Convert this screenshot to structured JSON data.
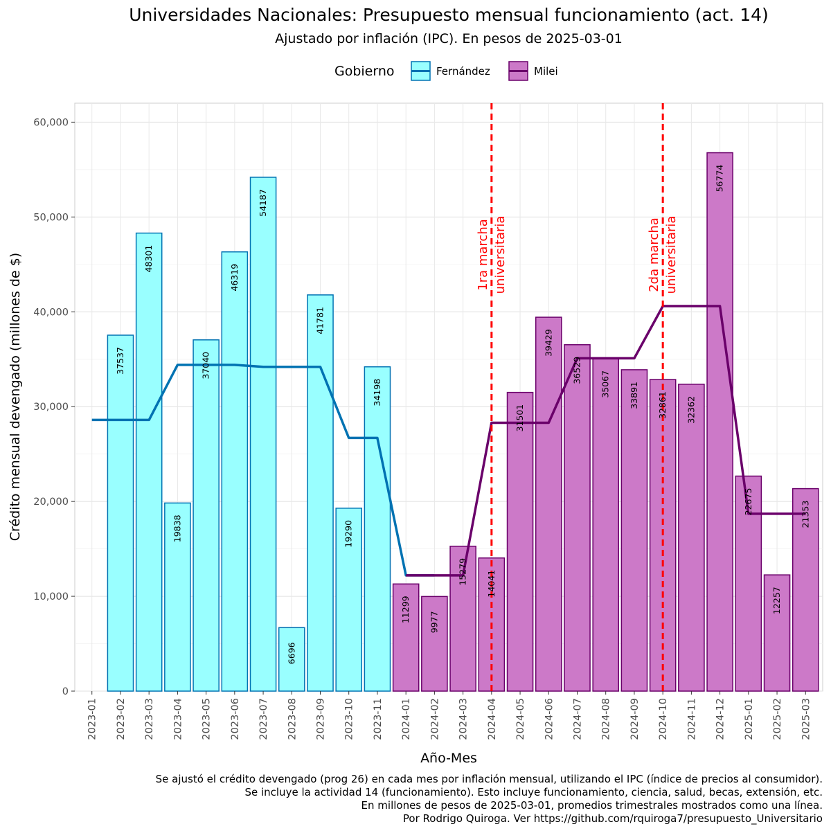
{
  "chart_data": {
    "type": "bar",
    "title": "Universidades Nacionales: Presupuesto mensual funcionamiento (act. 14)",
    "subtitle": "Ajustado por inflación (IPC). En pesos de 2025-03-01",
    "xlabel": "Año-Mes",
    "ylabel": "Crédito mensual devengado (millones de $)",
    "ylim": [
      0,
      62000
    ],
    "yticks": [
      0,
      10000,
      20000,
      30000,
      40000,
      50000,
      60000
    ],
    "ytick_labels": [
      "0",
      "10,000",
      "20,000",
      "30,000",
      "40,000",
      "50,000",
      "60,000"
    ],
    "grid": true,
    "legend": {
      "title": "Gobierno",
      "placement": "top",
      "entries": [
        {
          "name": "Fernández",
          "fill": "#99ffff",
          "stroke": "#0072b2"
        },
        {
          "name": "Milei",
          "fill": "#cc79c8",
          "stroke": "#6a006a"
        }
      ]
    },
    "categories": [
      "2023-01",
      "2023-02",
      "2023-03",
      "2023-04",
      "2023-05",
      "2023-06",
      "2023-07",
      "2023-08",
      "2023-09",
      "2023-10",
      "2023-11",
      "2024-01",
      "2024-02",
      "2024-03",
      "2024-04",
      "2024-05",
      "2024-06",
      "2024-07",
      "2024-08",
      "2024-09",
      "2024-10",
      "2024-11",
      "2024-12",
      "2025-01",
      "2025-02",
      "2025-03"
    ],
    "bars": [
      {
        "x": "2023-01",
        "value": 0,
        "label": "",
        "gov": "Fernández"
      },
      {
        "x": "2023-02",
        "value": 37537,
        "label": "37537",
        "gov": "Fernández"
      },
      {
        "x": "2023-03",
        "value": 48301,
        "label": "48301",
        "gov": "Fernández"
      },
      {
        "x": "2023-04",
        "value": 19838,
        "label": "19838",
        "gov": "Fernández"
      },
      {
        "x": "2023-05",
        "value": 37040,
        "label": "37040",
        "gov": "Fernández"
      },
      {
        "x": "2023-06",
        "value": 46319,
        "label": "46319",
        "gov": "Fernández"
      },
      {
        "x": "2023-07",
        "value": 54187,
        "label": "54187",
        "gov": "Fernández"
      },
      {
        "x": "2023-08",
        "value": 6696,
        "label": "6696",
        "gov": "Fernández"
      },
      {
        "x": "2023-09",
        "value": 41781,
        "label": "41781",
        "gov": "Fernández"
      },
      {
        "x": "2023-10",
        "value": 19290,
        "label": "19290",
        "gov": "Fernández"
      },
      {
        "x": "2023-11",
        "value": 34198,
        "label": "34198",
        "gov": "Fernández"
      },
      {
        "x": "2024-01",
        "value": 11299,
        "label": "11299",
        "gov": "Milei"
      },
      {
        "x": "2024-02",
        "value": 9977,
        "label": "9977",
        "gov": "Milei"
      },
      {
        "x": "2024-03",
        "value": 15279,
        "label": "15279",
        "gov": "Milei"
      },
      {
        "x": "2024-04",
        "value": 14041,
        "label": "14041",
        "gov": "Milei"
      },
      {
        "x": "2024-05",
        "value": 31501,
        "label": "31501",
        "gov": "Milei"
      },
      {
        "x": "2024-06",
        "value": 39429,
        "label": "39429",
        "gov": "Milei"
      },
      {
        "x": "2024-07",
        "value": 36529,
        "label": "36529",
        "gov": "Milei"
      },
      {
        "x": "2024-08",
        "value": 35067,
        "label": "35067",
        "gov": "Milei"
      },
      {
        "x": "2024-09",
        "value": 33891,
        "label": "33891",
        "gov": "Milei"
      },
      {
        "x": "2024-10",
        "value": 32861,
        "label": "32861",
        "gov": "Milei"
      },
      {
        "x": "2024-11",
        "value": 32362,
        "label": "32362",
        "gov": "Milei"
      },
      {
        "x": "2024-12",
        "value": 56774,
        "label": "56774",
        "gov": "Milei"
      },
      {
        "x": "2025-01",
        "value": 22675,
        "label": "22675",
        "gov": "Milei"
      },
      {
        "x": "2025-02",
        "value": 12257,
        "label": "12257",
        "gov": "Milei"
      },
      {
        "x": "2025-03",
        "value": 21353,
        "label": "21353",
        "gov": "Milei"
      }
    ],
    "quarterly_lines": [
      {
        "name": "Fernández",
        "color": "#0072b2",
        "points": [
          [
            "2023-01",
            28600
          ],
          [
            "2023-03",
            28600
          ],
          [
            "2023-04",
            34400
          ],
          [
            "2023-06",
            34400
          ],
          [
            "2023-07",
            34200
          ],
          [
            "2023-09",
            34200
          ],
          [
            "2023-10",
            26700
          ],
          [
            "2023-11",
            26700
          ],
          [
            "2024-01",
            12200
          ],
          [
            "2024-02",
            12200
          ]
        ]
      },
      {
        "name": "Milei",
        "color": "#6a006a",
        "points": [
          [
            "2024-01",
            12200
          ],
          [
            "2024-03",
            12200
          ],
          [
            "2024-04",
            28300
          ],
          [
            "2024-06",
            28300
          ],
          [
            "2024-07",
            35100
          ],
          [
            "2024-09",
            35100
          ],
          [
            "2024-10",
            40600
          ],
          [
            "2024-12",
            40600
          ],
          [
            "2025-01",
            18700
          ],
          [
            "2025-03",
            18700
          ]
        ]
      }
    ],
    "annotations": [
      {
        "x": "2024-04",
        "lines": [
          "1ra marcha",
          "universitaria"
        ],
        "color": "#ff0000"
      },
      {
        "x": "2024-10",
        "lines": [
          "2da marcha",
          "universitaria"
        ],
        "color": "#ff0000"
      }
    ],
    "caption": [
      "Se ajustó el crédito devengado (prog 26) en cada mes por inflación mensual, utilizando el IPC (índice de precios al consumidor).",
      "Se incluye la actividad 14 (funcionamiento). Esto incluye funcionamiento, ciencia, salud, becas, extensión, etc.",
      "En millones de pesos de 2025-03-01, promedios trimestrales mostrados como una línea.",
      "Por Rodrigo Quiroga. Ver https://github.com/rquiroga7/presupuesto_Universitario"
    ]
  }
}
